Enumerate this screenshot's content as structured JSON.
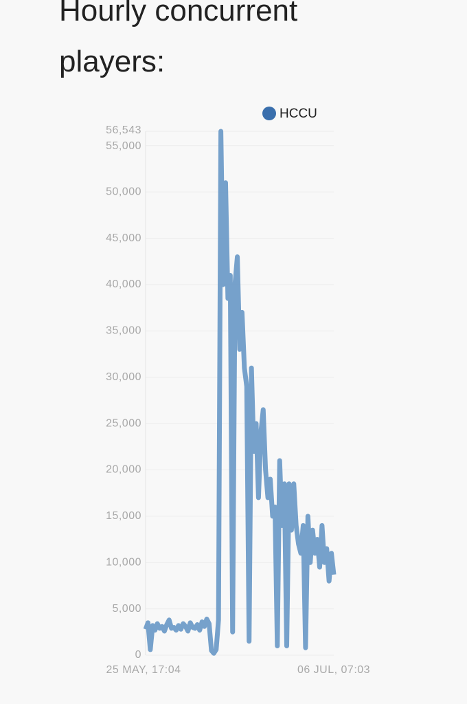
{
  "chart_data": {
    "type": "line",
    "title": "Hourly concurrent players:",
    "categories": [
      "25 MAY, 17:04",
      null,
      null,
      null,
      null,
      null,
      null,
      null,
      null,
      null,
      null,
      null,
      null,
      null,
      null,
      null,
      null,
      null,
      null,
      null,
      null,
      null,
      null,
      null,
      null,
      null,
      null,
      null,
      null,
      null,
      null,
      null,
      null,
      null,
      null,
      null,
      null,
      null,
      null,
      null,
      null,
      null,
      null,
      null,
      null,
      null,
      null,
      null,
      null,
      null,
      null,
      null,
      null,
      null,
      null,
      null,
      null,
      null,
      null,
      null,
      null,
      null,
      null,
      null,
      null,
      null,
      null,
      null,
      null,
      null,
      null,
      null,
      null,
      null,
      null,
      null,
      null,
      null,
      null,
      null,
      "06 JUL, 07:03"
    ],
    "series": [
      {
        "name": "HCCU",
        "color": "#6f9cc8",
        "values": [
          2800,
          3500,
          600,
          3200,
          2700,
          3400,
          2900,
          3100,
          2600,
          3300,
          3800,
          2900,
          3000,
          2700,
          3200,
          2800,
          3400,
          3100,
          2600,
          3500,
          3000,
          2900,
          3300,
          2700,
          3600,
          3100,
          3900,
          3400,
          500,
          200,
          600,
          3800,
          56543,
          40000,
          51000,
          38500,
          41000,
          2500,
          40000,
          43000,
          33000,
          37000,
          31000,
          29000,
          1500,
          31000,
          22000,
          25000,
          17000,
          24000,
          26500,
          20000,
          17000,
          19000,
          15000,
          16000,
          1000,
          21000,
          14000,
          18500,
          1000,
          18500,
          13500,
          18500,
          14000,
          12000,
          11000,
          14000,
          800,
          15000,
          10000,
          13500,
          11000,
          12500,
          9500,
          14000,
          10000,
          11500,
          8000,
          11000,
          8700
        ]
      }
    ],
    "ylim": [
      0,
      56543
    ],
    "yticks": [
      0,
      {
        "value": 5000,
        "label": "5,000"
      },
      {
        "value": 10000,
        "label": "10,000"
      },
      {
        "value": 15000,
        "label": "15,000"
      },
      {
        "value": 20000,
        "label": "20,000"
      },
      {
        "value": 25000,
        "label": "25,000"
      },
      {
        "value": 30000,
        "label": "30,000"
      },
      {
        "value": 35000,
        "label": "35,000"
      },
      {
        "value": 40000,
        "label": "40,000"
      },
      {
        "value": 45000,
        "label": "45,000"
      },
      {
        "value": 50000,
        "label": "50,000"
      },
      {
        "value": 55000,
        "label": "55,000"
      },
      {
        "value": 56543,
        "label": "56,543"
      }
    ],
    "grid": true,
    "legend": "top-right",
    "legend_marker_color": "#3a6fad"
  }
}
